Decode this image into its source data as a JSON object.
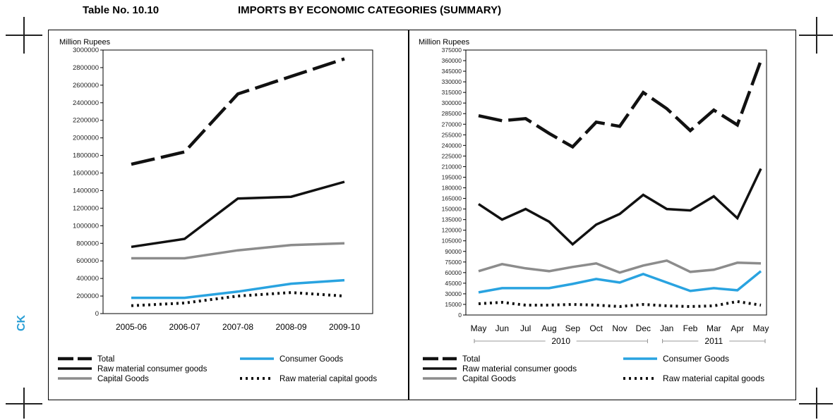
{
  "page": {
    "table_no": "Table No. 10.10",
    "heading": "IMPORTS BY ECONOMIC CATEGORIES (SUMMARY)",
    "side_label": "CK"
  },
  "colors": {
    "total": "#111111",
    "raw_consumer": "#111111",
    "capital": "#8c8c8c",
    "consumer": "#29a3e0",
    "raw_capital": "#111111"
  },
  "chart_data": [
    {
      "type": "line",
      "ylabel": "Million Rupees",
      "categories": [
        "2005-06",
        "2006-07",
        "2007-08",
        "2008-09",
        "2009-10"
      ],
      "ylim": [
        0,
        3000000
      ],
      "yticks": [
        0,
        200000,
        400000,
        600000,
        800000,
        1000000,
        1200000,
        1400000,
        1600000,
        1800000,
        2000000,
        2200000,
        2400000,
        2600000,
        2800000,
        3000000
      ],
      "series": [
        {
          "key": "total",
          "name": "Total",
          "style": "dashed",
          "values": [
            1700000,
            1840000,
            2500000,
            2700000,
            2900000
          ]
        },
        {
          "key": "raw_consumer",
          "name": "Raw material consumer goods",
          "style": "solid",
          "values": [
            760000,
            850000,
            1310000,
            1330000,
            1500000
          ]
        },
        {
          "key": "capital",
          "name": "Capital Goods",
          "style": "solid",
          "values": [
            630000,
            630000,
            720000,
            780000,
            800000
          ]
        },
        {
          "key": "consumer",
          "name": "Consumer Goods",
          "style": "solid",
          "values": [
            180000,
            180000,
            250000,
            340000,
            380000
          ]
        },
        {
          "key": "raw_capital",
          "name": "Raw material capital goods",
          "style": "dotted",
          "values": [
            90000,
            120000,
            200000,
            240000,
            200000
          ]
        }
      ],
      "grid": false,
      "legend": "bottom"
    },
    {
      "type": "line",
      "ylabel": "Million Rupees",
      "categories": [
        "May",
        "Jun",
        "Jul",
        "Aug",
        "Sep",
        "Oct",
        "Nov",
        "Dec",
        "Jan",
        "Feb",
        "Mar",
        "Apr",
        "May"
      ],
      "year_groups": [
        {
          "label": "2010",
          "from": 0,
          "to": 7
        },
        {
          "label": "2011",
          "from": 8,
          "to": 12
        }
      ],
      "ylim": [
        0,
        375000
      ],
      "yticks": [
        0,
        15000,
        30000,
        45000,
        60000,
        75000,
        90000,
        105000,
        120000,
        135000,
        150000,
        165000,
        180000,
        195000,
        210000,
        225000,
        240000,
        255000,
        270000,
        285000,
        300000,
        315000,
        330000,
        345000,
        360000,
        375000
      ],
      "series": [
        {
          "key": "total",
          "name": "Total",
          "style": "dashed",
          "values": [
            282000,
            275000,
            278000,
            257000,
            238000,
            273000,
            267000,
            315000,
            292000,
            261000,
            290000,
            269000,
            360000
          ]
        },
        {
          "key": "raw_consumer",
          "name": "Raw material consumer goods",
          "style": "solid",
          "values": [
            157000,
            135000,
            150000,
            132000,
            100000,
            128000,
            143000,
            170000,
            150000,
            148000,
            168000,
            137000,
            207000
          ]
        },
        {
          "key": "capital",
          "name": "Capital Goods",
          "style": "solid",
          "values": [
            62000,
            72000,
            66000,
            62000,
            68000,
            73000,
            60000,
            70000,
            77000,
            61000,
            64000,
            74000,
            73000
          ]
        },
        {
          "key": "consumer",
          "name": "Consumer Goods",
          "style": "solid",
          "values": [
            32000,
            38000,
            38000,
            38000,
            44000,
            51000,
            46000,
            58000,
            46000,
            34000,
            38000,
            35000,
            62000
          ]
        },
        {
          "key": "raw_capital",
          "name": "Raw material capital goods",
          "style": "dotted",
          "values": [
            16000,
            18000,
            14000,
            14000,
            15000,
            14000,
            12000,
            15000,
            13000,
            12000,
            13000,
            19000,
            14000
          ]
        }
      ],
      "grid": false,
      "legend": "bottom"
    }
  ]
}
